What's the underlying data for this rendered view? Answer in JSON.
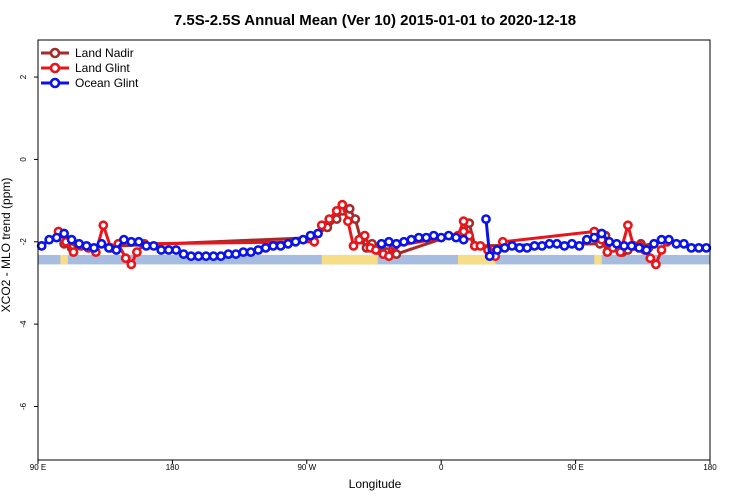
{
  "chart_data": {
    "type": "line",
    "title": "7.5S-2.5S Annual Mean (Ver 10)   2015-01-01 to 2020-12-18",
    "xlabel": "Longitude",
    "ylabel": "XCO2 - MLO trend (ppm)",
    "xlim": [
      0,
      360
    ],
    "ylim": [
      -7.3,
      2.9
    ],
    "x_ticks": [
      {
        "value": 0,
        "label": "90 E"
      },
      {
        "value": 72,
        "label": "180"
      },
      {
        "value": 144,
        "label": "90 W"
      },
      {
        "value": 216,
        "label": "0"
      },
      {
        "value": 288,
        "label": "90 E"
      },
      {
        "value": 360,
        "label": "180"
      }
    ],
    "y_ticks": [
      {
        "value": 2,
        "label": "2"
      },
      {
        "value": 0,
        "label": "0"
      },
      {
        "value": -2,
        "label": "-2"
      },
      {
        "value": -4,
        "label": "-4"
      },
      {
        "value": -6,
        "label": "-6"
      }
    ],
    "grid": false,
    "legend_position": "top-left",
    "surface_strip": {
      "y_range": [
        -2.55,
        -2.32
      ],
      "ocean_color": "#a7bddf",
      "land_color": "#f7dd86",
      "land_segments": [
        [
          12,
          16
        ],
        [
          152,
          182
        ],
        [
          225,
          245
        ],
        [
          298,
          302
        ]
      ]
    },
    "series": [
      {
        "name": "Land Nadir",
        "color": "#a52a2a",
        "x": [
          14,
          18,
          147,
          155,
          160,
          163,
          167,
          170,
          173,
          176,
          179,
          182,
          184,
          187,
          190,
          192,
          228,
          231,
          234,
          301,
          304,
          307,
          310,
          313,
          316,
          319,
          323,
          327
        ],
        "y": [
          -2.05,
          -2.15,
          -1.9,
          -1.65,
          -1.45,
          -1.25,
          -1.2,
          -1.45,
          -1.95,
          -2.15,
          -2.05,
          -2.2,
          -2.1,
          -2.25,
          -2.2,
          -2.3,
          -1.75,
          -1.55,
          -2.1,
          -2.05,
          -1.85,
          -2.1,
          -2.15,
          -2.25,
          -2.2,
          -2.1,
          -2.05,
          -2.15
        ]
      },
      {
        "name": "Land Glint",
        "color": "#e8161b",
        "x": [
          11,
          15,
          19,
          23,
          27,
          31,
          35,
          39,
          43,
          47,
          50,
          53,
          57,
          148,
          152,
          156,
          160,
          163,
          166,
          169,
          172,
          175,
          178,
          181,
          185,
          188,
          191,
          225,
          228,
          231,
          234,
          237,
          241,
          245,
          249,
          298,
          302,
          305,
          308,
          312,
          316,
          319,
          322,
          325,
          328,
          331,
          334,
          337
        ],
        "y": [
          -1.75,
          -2.0,
          -2.25,
          -2.1,
          -2.15,
          -2.25,
          -1.6,
          -2.15,
          -2.05,
          -2.4,
          -2.55,
          -2.25,
          -2.05,
          -2.0,
          -1.6,
          -1.45,
          -1.25,
          -1.1,
          -1.5,
          -2.1,
          -1.95,
          -1.85,
          -2.15,
          -2.2,
          -2.3,
          -2.35,
          -2.1,
          -1.85,
          -1.5,
          -1.85,
          -2.1,
          -2.1,
          -2.2,
          -2.35,
          -2.0,
          -1.75,
          -1.95,
          -2.25,
          -2.15,
          -2.25,
          -1.6,
          -2.1,
          -2.1,
          -2.2,
          -2.4,
          -2.55,
          -2.2,
          -2.0
        ]
      },
      {
        "name": "Ocean Glint",
        "color": "#0a14e6",
        "segments": [
          {
            "x": [
              2,
              6,
              10,
              14,
              18,
              22,
              26,
              30,
              34,
              38,
              42,
              46,
              50,
              54,
              58,
              62,
              66,
              70,
              74,
              78,
              82,
              86,
              90,
              94,
              98,
              102,
              106,
              110,
              114,
              118,
              122,
              126,
              130,
              134,
              138,
              142,
              146,
              150
            ],
            "y": [
              -2.1,
              -1.95,
              -1.9,
              -1.8,
              -1.95,
              -2.05,
              -2.1,
              -2.15,
              -2.05,
              -2.15,
              -2.2,
              -1.95,
              -2.0,
              -2.0,
              -2.1,
              -2.1,
              -2.2,
              -2.2,
              -2.2,
              -2.3,
              -2.35,
              -2.35,
              -2.35,
              -2.35,
              -2.35,
              -2.3,
              -2.3,
              -2.25,
              -2.25,
              -2.2,
              -2.15,
              -2.1,
              -2.1,
              -2.05,
              -2.0,
              -1.95,
              -1.85,
              -1.8
            ]
          },
          {
            "x": [
              184,
              188,
              192,
              196,
              200,
              204,
              208,
              212,
              216,
              220,
              224,
              228
            ],
            "y": [
              -2.05,
              -2.0,
              -2.05,
              -2.0,
              -1.95,
              -1.9,
              -1.9,
              -1.85,
              -1.9,
              -1.85,
              -1.9,
              -1.95
            ]
          },
          {
            "x": [
              240,
              242,
              246,
              250,
              254,
              258,
              262,
              266,
              270,
              274,
              278,
              282,
              286,
              290,
              294,
              298,
              302,
              306,
              310,
              314,
              318,
              322,
              326,
              330,
              334,
              338,
              342,
              346,
              350,
              354,
              358
            ],
            "y": [
              -1.45,
              -2.35,
              -2.2,
              -2.15,
              -2.1,
              -2.15,
              -2.15,
              -2.1,
              -2.1,
              -2.05,
              -2.05,
              -2.1,
              -2.05,
              -2.1,
              -1.95,
              -1.9,
              -1.8,
              -2.0,
              -2.05,
              -2.1,
              -2.1,
              -2.15,
              -2.2,
              -2.05,
              -1.95,
              -1.95,
              -2.05,
              -2.05,
              -2.15,
              -2.15,
              -2.15
            ]
          }
        ]
      }
    ]
  }
}
